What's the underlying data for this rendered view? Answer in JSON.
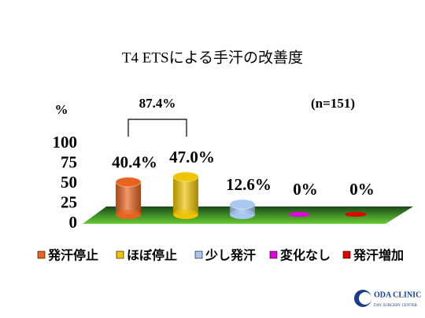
{
  "chart_data": {
    "type": "bar3d",
    "title": "T4 ETSによる手汗の改善度",
    "y_label": "%",
    "annotations": [
      "87.4%",
      "(n=151)"
    ],
    "categories": [
      "発汗停止",
      "ほぼ停止",
      "少し発汗",
      "変化なし",
      "発汗増加"
    ],
    "values": [
      40.4,
      47.0,
      12.6,
      0,
      0
    ],
    "value_labels": [
      "40.4%",
      "47.0%",
      "12.6%",
      "0%",
      "0%"
    ],
    "colors": [
      "#e8641e",
      "#f0c400",
      "#a8c8f0",
      "#e000e0",
      "#e00000"
    ],
    "ylim": [
      0,
      100
    ],
    "yticks": [
      0,
      25,
      50,
      75,
      100
    ]
  },
  "logo": {
    "name": "ODA CLINIC",
    "subtitle": "DAY SURGERY CENTER"
  }
}
